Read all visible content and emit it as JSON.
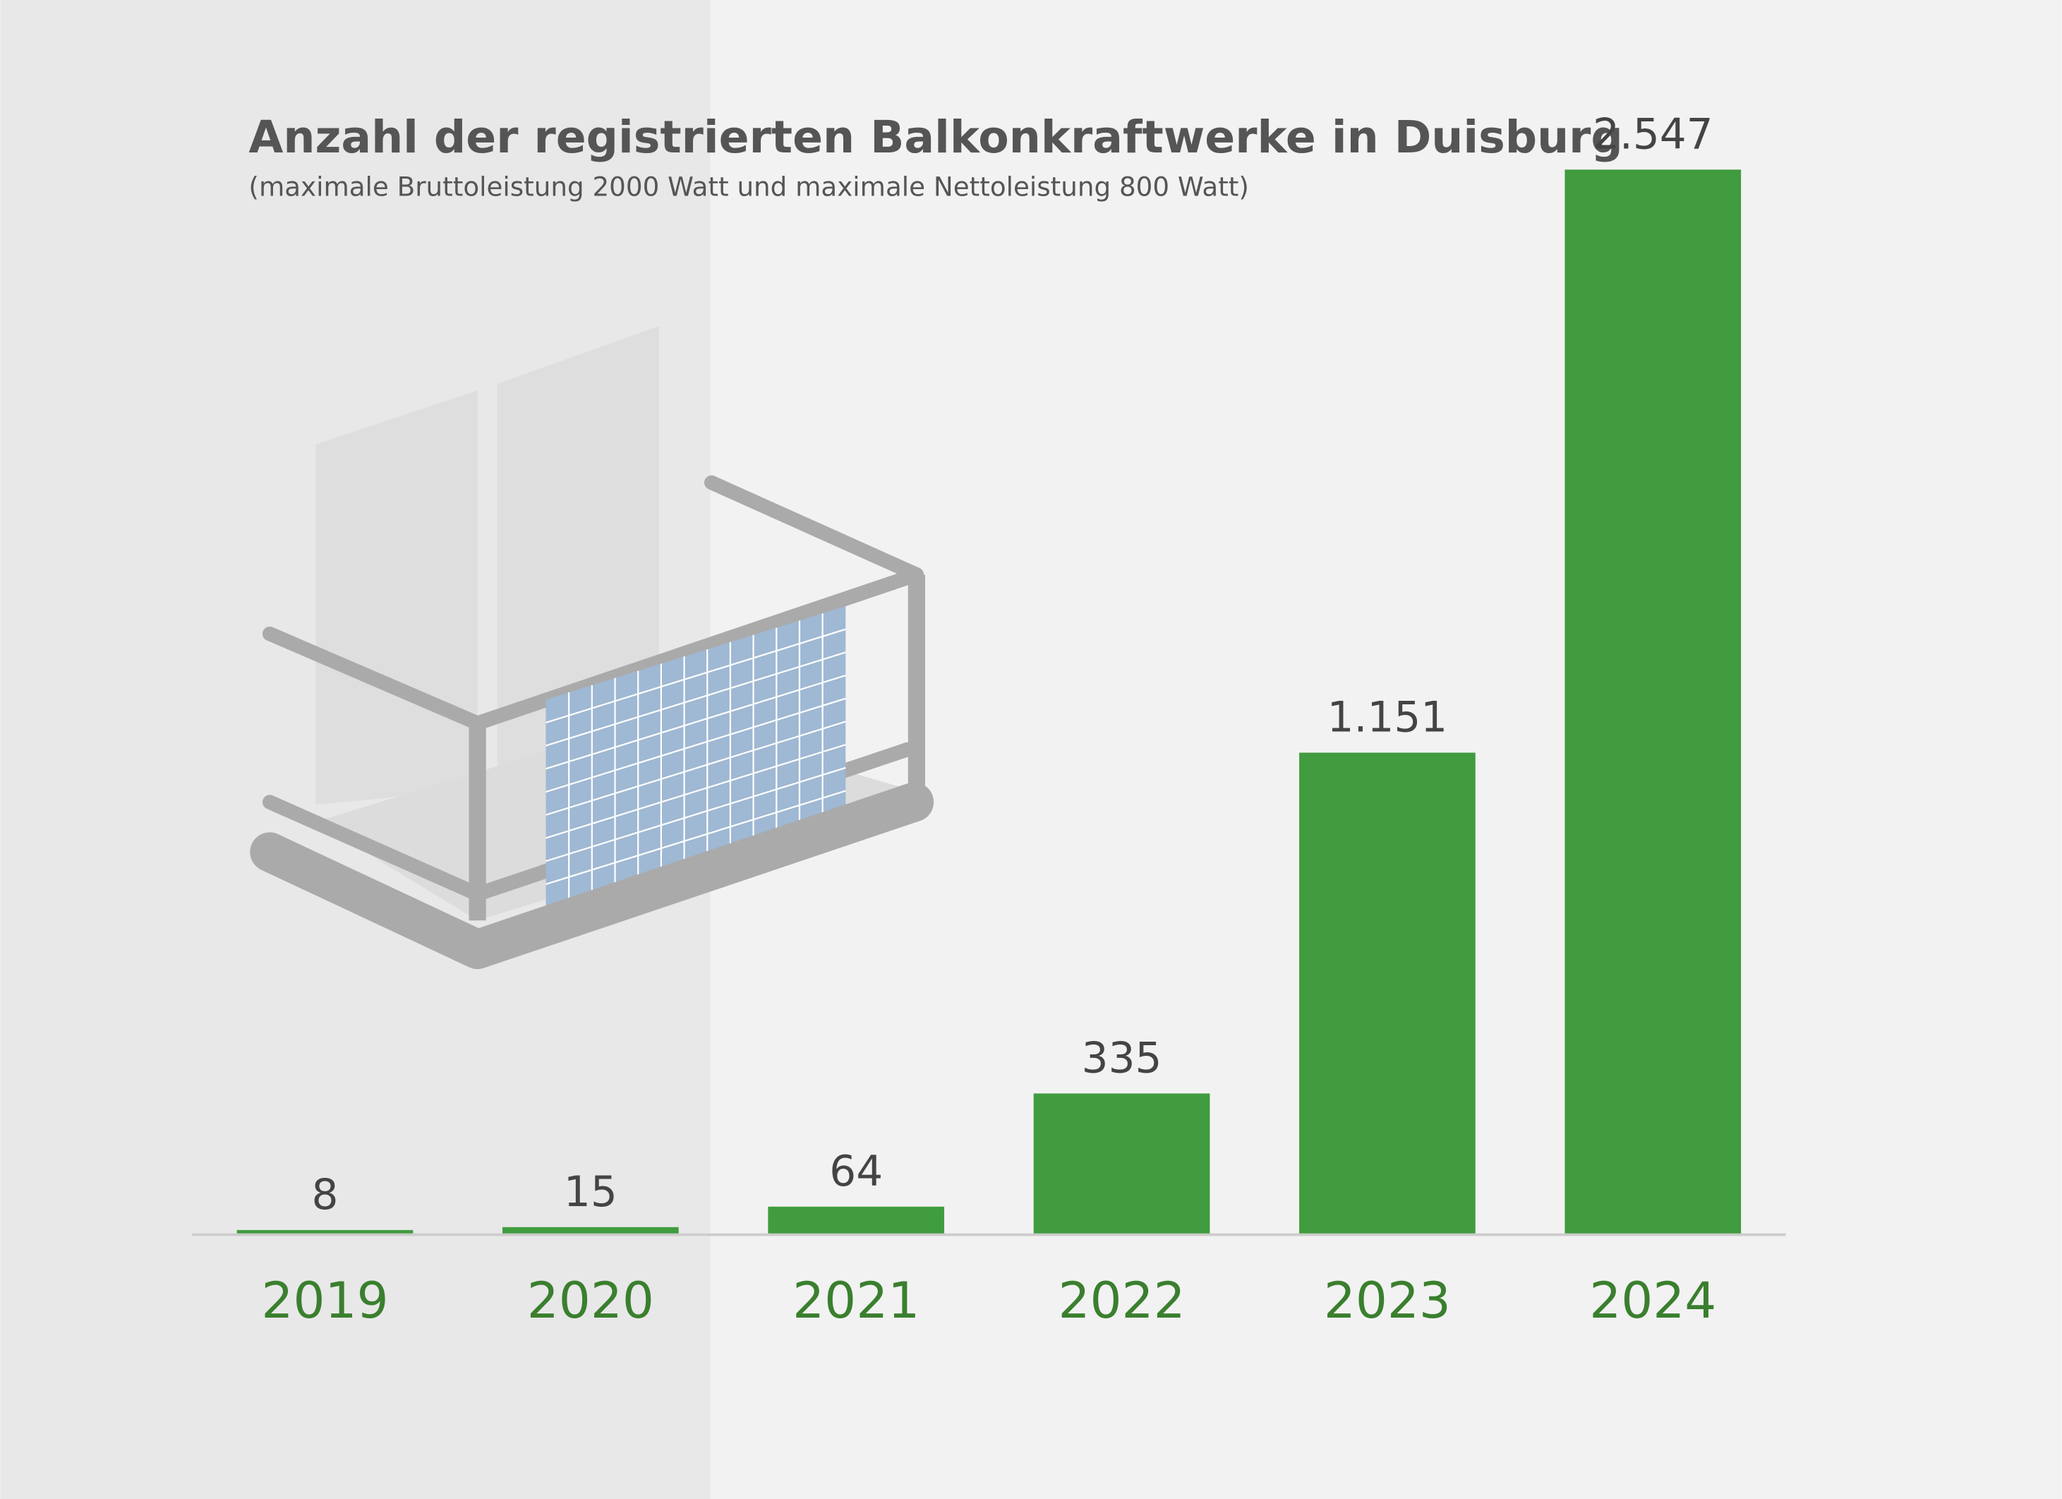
{
  "chart_data": {
    "type": "bar",
    "title": "Anzahl der registrierten Balkonkraftwerke in Duisburg",
    "subtitle": "(maximale Bruttoleistung 2000 Watt und maximale Nettoleistung 800 Watt)",
    "categories": [
      "2019",
      "2020",
      "2021",
      "2022",
      "2023",
      "2024"
    ],
    "values": [
      8,
      15,
      64,
      335,
      1151,
      2547
    ],
    "value_labels": [
      "8",
      "15",
      "64",
      "335",
      "1.151",
      "2.547"
    ],
    "color": "#409c3e"
  }
}
